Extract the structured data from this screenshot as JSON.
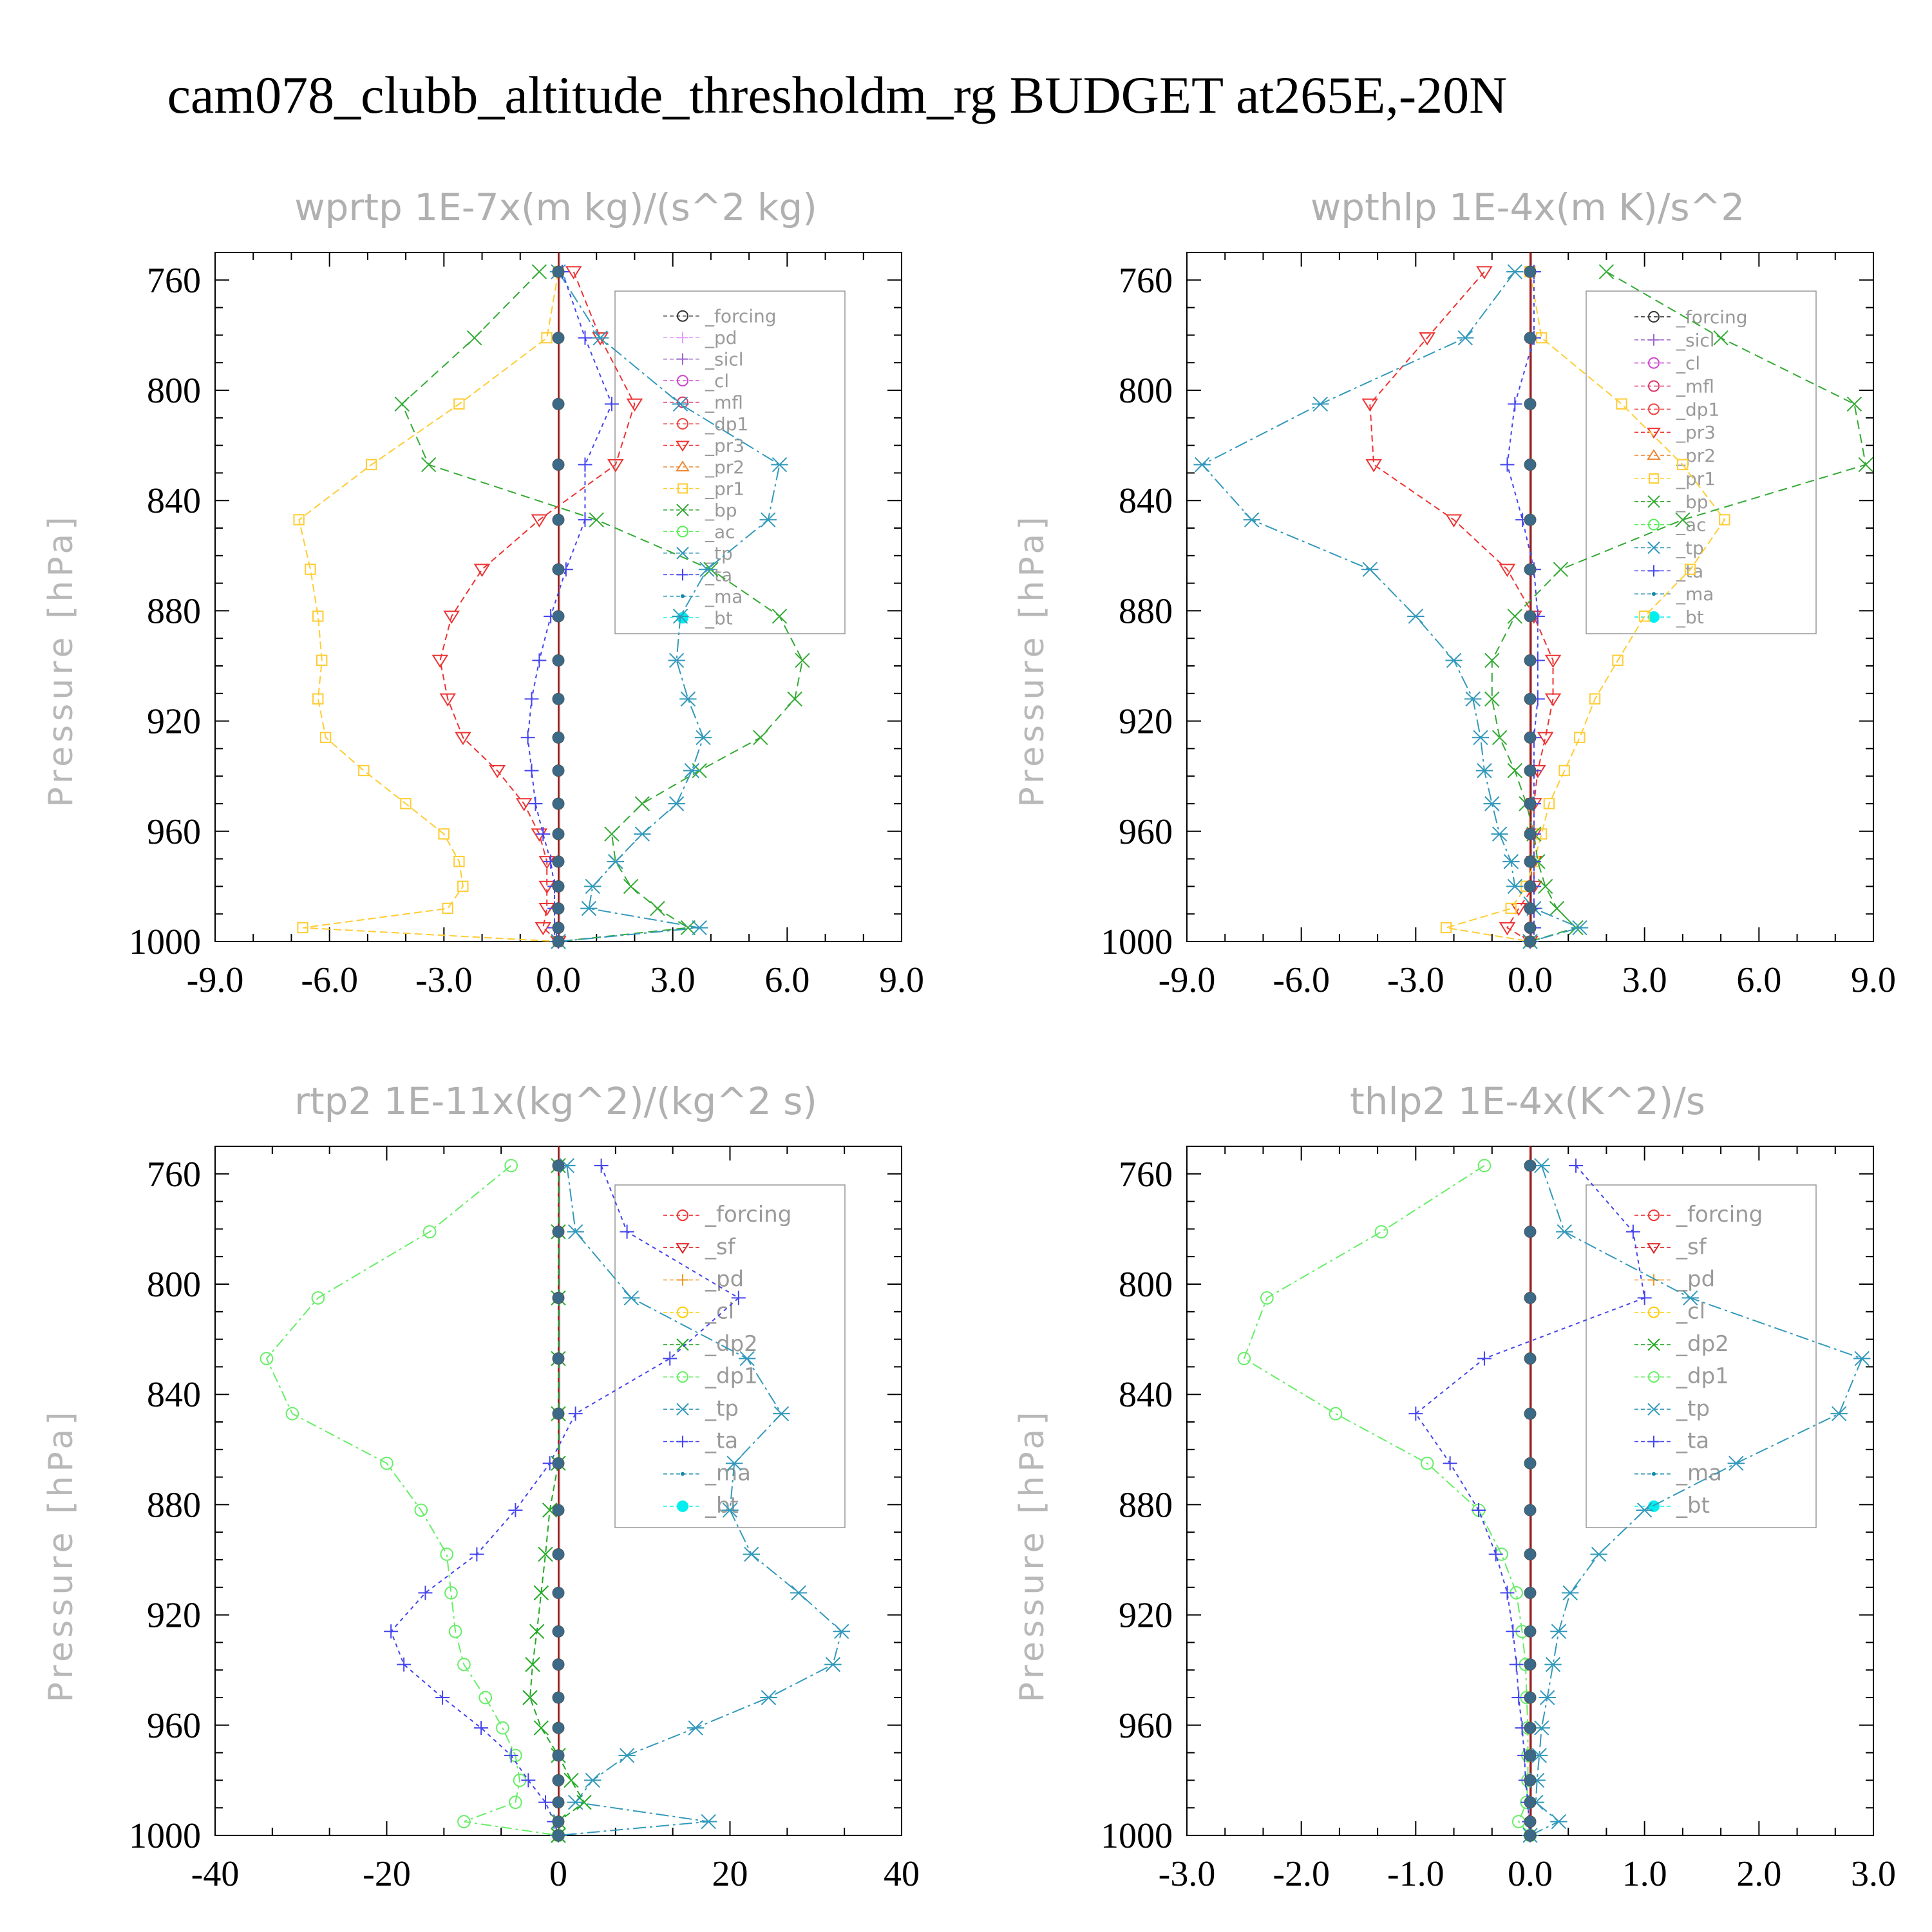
{
  "title": "cam078_clubb_altitude_thresholdm_rg  BUDGET at265E,-20N",
  "colors": {
    "_forcing": "#333333",
    "_pd": "#e0a0ff",
    "_sicl": "#9966cc",
    "_cl": "#cc44cc",
    "_mfl": "#dd3366",
    "_dp1": "#ee4444",
    "_pr3": "#ee3333",
    "_pr2": "#ee8833",
    "_pr1": "#ffcc33",
    "_bp": "#33aa33",
    "_ac": "#55ee55",
    "_tp": "#3399bb",
    "_ta": "#4444ee",
    "_ma": "#1188aa",
    "_bt": "#00eeee",
    "_sf": "#dd2222",
    "_dp2": "#22aa22",
    "_forcing_red": "#ee3333",
    "_pd_orange": "#ee9922",
    "_cl_yellow": "#ffcc00",
    "_dp1_green": "#66ee66"
  },
  "chart_data": [
    {
      "type": "line",
      "title": "wprtp  1E-7x(m kg)/(s^2 kg)",
      "ylabel": "Pressure [hPa]",
      "xlim": [
        -9,
        9
      ],
      "ylim": [
        750,
        1000
      ],
      "xticks": [
        "-9.0",
        "-6.0",
        "-3.0",
        "0.0",
        "3.0",
        "6.0",
        "9.0"
      ],
      "yticks": [
        "760",
        "800",
        "840",
        "880",
        "920",
        "960",
        "1000"
      ],
      "levels": [
        757,
        781,
        805,
        827,
        847,
        865,
        882,
        898,
        912,
        926,
        938,
        950,
        961,
        971,
        980,
        988,
        995,
        1000
      ],
      "legend": [
        "_forcing",
        "_pd",
        "_sicl",
        "_cl",
        "_mfl",
        "_dp1",
        "_pr3",
        "_pr2",
        "_pr1",
        "_bp",
        "_ac",
        "_tp",
        "_ta",
        "_ma",
        "_bt"
      ],
      "series": [
        {
          "name": "_pr1",
          "values": [
            0,
            -0.3,
            -2.6,
            -4.9,
            -6.8,
            -6.5,
            -6.3,
            -6.2,
            -6.3,
            -6.1,
            -5.1,
            -4.0,
            -3.0,
            -2.6,
            -2.5,
            -2.9,
            -6.7,
            0
          ]
        },
        {
          "name": "_pr3",
          "values": [
            0.4,
            1.1,
            2.0,
            1.5,
            -0.5,
            -2.0,
            -2.8,
            -3.1,
            -2.9,
            -2.5,
            -1.6,
            -0.9,
            -0.5,
            -0.3,
            -0.3,
            -0.3,
            -0.4,
            0
          ]
        },
        {
          "name": "_bp",
          "values": [
            -0.5,
            -2.2,
            -4.1,
            -3.4,
            1.0,
            4.0,
            5.8,
            6.4,
            6.2,
            5.3,
            3.7,
            2.2,
            1.4,
            1.5,
            1.9,
            2.6,
            3.4,
            0
          ]
        },
        {
          "name": "_tp",
          "values": [
            0,
            1.1,
            3.2,
            5.8,
            5.5,
            3.9,
            3.2,
            3.1,
            3.4,
            3.8,
            3.5,
            3.1,
            2.2,
            1.5,
            0.9,
            0.8,
            3.7,
            0
          ]
        },
        {
          "name": "_ta",
          "values": [
            0.1,
            0.7,
            1.4,
            0.7,
            0.7,
            0.2,
            -0.2,
            -0.5,
            -0.7,
            -0.8,
            -0.7,
            -0.6,
            -0.4,
            -0.2,
            -0.1,
            -0.1,
            -0.1,
            0
          ]
        },
        {
          "name": "_bt",
          "values": [
            0,
            0,
            0,
            0,
            0,
            0,
            0,
            0,
            0,
            0,
            0,
            0,
            0,
            0,
            0,
            0,
            0,
            0
          ]
        }
      ]
    },
    {
      "type": "line",
      "title": "wpthlp  1E-4x(m K)/s^2",
      "ylabel": "Pressure [hPa]",
      "xlim": [
        -9,
        9
      ],
      "ylim": [
        750,
        1000
      ],
      "xticks": [
        "-9.0",
        "-6.0",
        "-3.0",
        "0.0",
        "3.0",
        "6.0",
        "9.0"
      ],
      "yticks": [
        "760",
        "800",
        "840",
        "880",
        "920",
        "960",
        "1000"
      ],
      "levels": [
        757,
        781,
        805,
        827,
        847,
        865,
        882,
        898,
        912,
        926,
        938,
        950,
        961,
        971,
        980,
        988,
        995,
        1000
      ],
      "legend": [
        "_forcing",
        "_sicl",
        "_cl",
        "_mfl",
        "_dp1",
        "_pr3",
        "_pr2",
        "_pr1",
        "_bp",
        "_ac",
        "_tp",
        "_ta",
        "_ma",
        "_bt"
      ],
      "series": [
        {
          "name": "_pr3",
          "values": [
            -1.2,
            -2.7,
            -4.2,
            -4.1,
            -2.0,
            -0.6,
            0.1,
            0.6,
            0.6,
            0.4,
            0.2,
            0.1,
            0.1,
            0.1,
            0.1,
            -0.3,
            -0.6,
            0
          ]
        },
        {
          "name": "_pr1",
          "values": [
            0,
            0.3,
            2.4,
            4.0,
            5.1,
            4.2,
            3.0,
            2.3,
            1.7,
            1.3,
            0.9,
            0.5,
            0.3,
            0.1,
            -0.1,
            -0.5,
            -2.2,
            0
          ]
        },
        {
          "name": "_bp",
          "values": [
            2.0,
            5.0,
            8.5,
            8.8,
            4.0,
            0.8,
            -0.4,
            -1.0,
            -1.0,
            -0.8,
            -0.4,
            -0.1,
            0.1,
            0.2,
            0.4,
            0.7,
            1.2,
            0
          ]
        },
        {
          "name": "_tp",
          "values": [
            -0.4,
            -1.7,
            -5.5,
            -8.6,
            -7.3,
            -4.2,
            -3.0,
            -2.0,
            -1.5,
            -1.3,
            -1.2,
            -1.0,
            -0.8,
            -0.5,
            -0.4,
            0.1,
            1.3,
            0
          ]
        },
        {
          "name": "_ta",
          "values": [
            0.1,
            0.1,
            -0.4,
            -0.6,
            -0.2,
            0.1,
            0.2,
            0.2,
            0.2,
            0.1,
            0.1,
            0.1,
            0.1,
            0.1,
            0.1,
            0.1,
            0.1,
            0
          ]
        },
        {
          "name": "_bt",
          "values": [
            0,
            0,
            0,
            0,
            0,
            0,
            0,
            0,
            0,
            0,
            0,
            0,
            0,
            0,
            0,
            0,
            0,
            0
          ]
        }
      ]
    },
    {
      "type": "line",
      "title": "rtp2  1E-11x(kg^2)/(kg^2 s)",
      "ylabel": "Pressure [hPa]",
      "xlim": [
        -40,
        40
      ],
      "ylim": [
        750,
        1000
      ],
      "xticks": [
        "-40",
        "-20",
        "0",
        "20",
        "40"
      ],
      "yticks": [
        "760",
        "800",
        "840",
        "880",
        "920",
        "960",
        "1000"
      ],
      "levels": [
        757,
        781,
        805,
        827,
        847,
        865,
        882,
        898,
        912,
        926,
        938,
        950,
        961,
        971,
        980,
        988,
        995,
        1000
      ],
      "legend": [
        "_forcing",
        "_sf",
        "_pd",
        "_cl",
        "_dp2",
        "_dp1",
        "_tp",
        "_ta",
        "_ma",
        "_bt"
      ],
      "series": [
        {
          "name": "_dp1",
          "values": [
            -5.5,
            -15,
            -28,
            -34,
            -31,
            -20,
            -16,
            -13,
            -12.5,
            -12,
            -11,
            -8.5,
            -6.5,
            -5,
            -4.5,
            -5,
            -11,
            0
          ]
        },
        {
          "name": "_tp",
          "values": [
            1,
            2,
            8.5,
            22,
            26,
            20.5,
            20,
            22.5,
            28,
            33,
            32,
            24.5,
            16,
            8,
            4,
            2,
            17.5,
            0
          ]
        },
        {
          "name": "_ta",
          "values": [
            5,
            8,
            21,
            13,
            2,
            -1,
            -5,
            -9.5,
            -15.5,
            -19.5,
            -18,
            -13.5,
            -9,
            -5.5,
            -3.5,
            -1.5,
            -0.5,
            0
          ]
        },
        {
          "name": "_dp2",
          "values": [
            0,
            0,
            0,
            0,
            0,
            0,
            -1,
            -1.5,
            -2,
            -2.5,
            -3,
            -3.3,
            -2,
            0,
            1.5,
            3,
            0,
            0
          ]
        },
        {
          "name": "_bt",
          "values": [
            0,
            0,
            0,
            0,
            0,
            0,
            0,
            0,
            0,
            0,
            0,
            0,
            0,
            0,
            0,
            0,
            0,
            0
          ]
        }
      ]
    },
    {
      "type": "line",
      "title": "thlp2  1E-4x(K^2)/s",
      "ylabel": "Pressure [hPa]",
      "xlim": [
        -3,
        3
      ],
      "ylim": [
        750,
        1000
      ],
      "xticks": [
        "-3.0",
        "-2.0",
        "-1.0",
        "0.0",
        "1.0",
        "2.0",
        "3.0"
      ],
      "yticks": [
        "760",
        "800",
        "840",
        "880",
        "920",
        "960",
        "1000"
      ],
      "levels": [
        757,
        781,
        805,
        827,
        847,
        865,
        882,
        898,
        912,
        926,
        938,
        950,
        961,
        971,
        980,
        988,
        995,
        1000
      ],
      "legend": [
        "_forcing",
        "_sf",
        "_pd",
        "_cl",
        "_dp2",
        "_dp1",
        "_tp",
        "_ta",
        "_ma",
        "_bt"
      ],
      "series": [
        {
          "name": "_dp1",
          "values": [
            -0.4,
            -1.3,
            -2.3,
            -2.5,
            -1.7,
            -0.9,
            -0.45,
            -0.25,
            -0.12,
            -0.07,
            -0.04,
            -0.03,
            -0.02,
            -0.02,
            -0.02,
            -0.03,
            -0.1,
            0
          ]
        },
        {
          "name": "_tp",
          "values": [
            0.1,
            0.3,
            1.4,
            2.9,
            2.7,
            1.8,
            1.0,
            0.6,
            0.35,
            0.25,
            0.2,
            0.15,
            0.1,
            0.08,
            0.06,
            0.05,
            0.25,
            0
          ]
        },
        {
          "name": "_ta",
          "values": [
            0.4,
            0.9,
            1.0,
            -0.4,
            -1.0,
            -0.7,
            -0.45,
            -0.3,
            -0.2,
            -0.15,
            -0.12,
            -0.1,
            -0.07,
            -0.05,
            -0.04,
            -0.02,
            -0.01,
            0
          ]
        },
        {
          "name": "_bt",
          "values": [
            0,
            0,
            0,
            0,
            0,
            0,
            0,
            0,
            0,
            0,
            0,
            0,
            0,
            0,
            0,
            0,
            0,
            0
          ]
        }
      ]
    }
  ]
}
